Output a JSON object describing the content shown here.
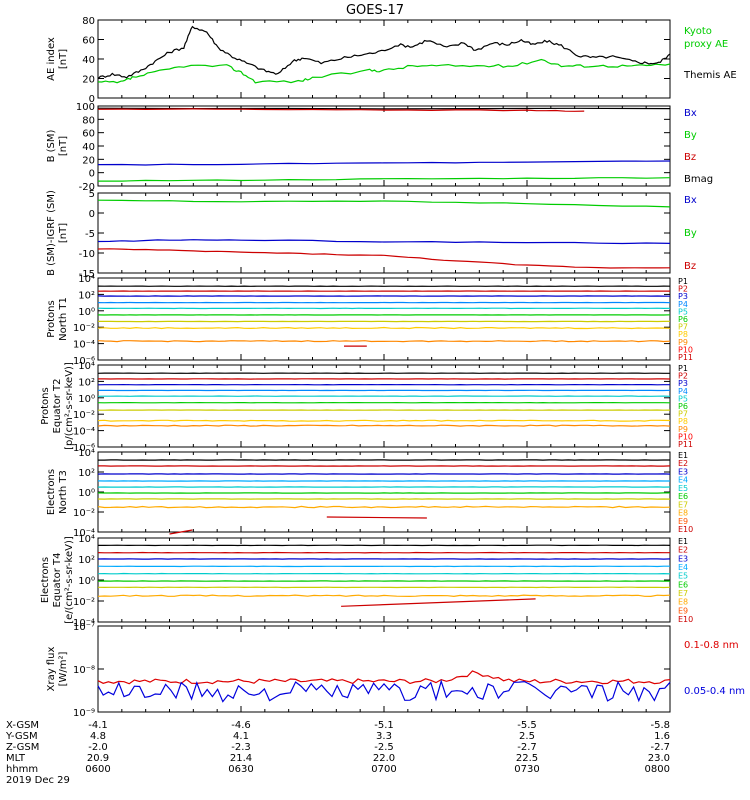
{
  "title": "GOES-17",
  "colors": {
    "kyoto": "#00cc00",
    "themis": "#000000",
    "bx": "#0000cc",
    "by": "#00cc00",
    "bz": "#cc0000",
    "bmag": "#000000",
    "xray_long": "#dd0000",
    "xray_short": "#0000dd"
  },
  "chart_data": [
    {
      "type": "line",
      "panel": "ae",
      "ylabel": [
        "AE index",
        "[nT]"
      ],
      "yticks": [
        "80",
        "60",
        "40",
        "20",
        "0"
      ],
      "ylim": [
        0,
        85
      ],
      "x_hours": [
        6.0,
        8.0
      ],
      "legend": [
        {
          "label": "Kyoto",
          "color": "kyoto"
        },
        {
          "label": "proxy AE",
          "color": "kyoto"
        },
        {
          "label": "Themis AE",
          "color": "themis"
        }
      ],
      "series": [
        {
          "name": "Kyoto proxy AE",
          "color": "kyoto",
          "x": [
            6.0,
            6.08,
            6.12,
            6.2,
            6.3,
            6.45,
            6.5,
            6.55,
            6.7,
            6.75,
            6.95,
            7.0,
            7.1,
            7.2,
            7.35,
            7.45,
            7.55,
            7.62,
            7.7,
            7.8,
            7.9,
            8.0
          ],
          "y": [
            17,
            17,
            22,
            28,
            35,
            35,
            28,
            18,
            18,
            22,
            30,
            30,
            35,
            35,
            35,
            35,
            42,
            35,
            35,
            35,
            35,
            37
          ]
        },
        {
          "name": "Themis AE",
          "color": "themis",
          "x": [
            6.0,
            6.05,
            6.1,
            6.15,
            6.2,
            6.25,
            6.3,
            6.33,
            6.38,
            6.42,
            6.47,
            6.52,
            6.58,
            6.63,
            6.68,
            6.72,
            6.78,
            6.85,
            6.92,
            6.98,
            7.05,
            7.1,
            7.15,
            7.22,
            7.28,
            7.32,
            7.38,
            7.43,
            7.48,
            7.52,
            7.57,
            7.62,
            7.68,
            7.73,
            7.8,
            7.87,
            7.92,
            7.96,
            8.0
          ],
          "y": [
            22,
            26,
            23,
            30,
            40,
            50,
            55,
            78,
            72,
            55,
            45,
            38,
            30,
            26,
            40,
            44,
            38,
            43,
            47,
            50,
            58,
            56,
            63,
            55,
            60,
            52,
            60,
            58,
            63,
            58,
            62,
            57,
            46,
            44,
            45,
            40,
            38,
            38,
            48
          ]
        }
      ]
    },
    {
      "type": "line",
      "panel": "bsm",
      "ylabel": [
        "B (SM)",
        "[nT]"
      ],
      "yticks": [
        "100",
        "80",
        "60",
        "40",
        "20",
        "0",
        "-20"
      ],
      "ylim": [
        -25,
        100
      ],
      "x_hours": [
        6.0,
        8.0
      ],
      "legend": [
        {
          "label": "Bx",
          "color": "bx"
        },
        {
          "label": "By",
          "color": "by"
        },
        {
          "label": "Bz",
          "color": "bz"
        },
        {
          "label": "Bmag",
          "color": "bmag"
        }
      ],
      "series": [
        {
          "name": "Bmag",
          "color": "bmag",
          "x": [
            6.0,
            8.0
          ],
          "y": [
            96,
            96
          ]
        },
        {
          "name": "Bz",
          "color": "bz",
          "x": [
            6.0,
            6.5,
            7.0,
            7.5,
            7.7
          ],
          "y": [
            95,
            95,
            94,
            93,
            92
          ]
        },
        {
          "name": "Bx",
          "color": "bx",
          "x": [
            6.0,
            6.5,
            7.0,
            7.5,
            8.0
          ],
          "y": [
            8,
            9,
            11,
            12,
            14
          ]
        },
        {
          "name": "By",
          "color": "by",
          "x": [
            6.0,
            6.5,
            7.0,
            7.5,
            8.0
          ],
          "y": [
            -17,
            -16,
            -14,
            -13,
            -12
          ]
        }
      ]
    },
    {
      "type": "line",
      "panel": "bdiff",
      "ylabel": [
        "B (SM)-IGRF (SM)",
        "[nT]"
      ],
      "yticks": [
        "5",
        "0",
        "-5",
        "-10",
        "-15"
      ],
      "ylim": [
        -16,
        7
      ],
      "x_hours": [
        6.0,
        8.0
      ],
      "legend": [
        {
          "label": "Bx",
          "color": "bx"
        },
        {
          "label": "By",
          "color": "by"
        },
        {
          "label": "Bz",
          "color": "bz"
        }
      ],
      "series": [
        {
          "name": "By",
          "color": "by",
          "x": [
            6.0,
            6.5,
            7.0,
            7.5,
            8.0
          ],
          "y": [
            5,
            4.5,
            4.6,
            4,
            3
          ]
        },
        {
          "name": "Bx",
          "color": "bx",
          "x": [
            6.0,
            6.25,
            6.5,
            7.0,
            7.5,
            8.0
          ],
          "y": [
            -7,
            -6.5,
            -6.5,
            -7,
            -7.2,
            -7.5
          ]
        },
        {
          "name": "Bz",
          "color": "bz",
          "x": [
            6.0,
            6.25,
            6.5,
            6.75,
            7.0,
            7.25,
            7.5,
            7.75,
            8.0
          ],
          "y": [
            -9,
            -9.5,
            -10,
            -10.5,
            -11,
            -12.5,
            -13.8,
            -14.5,
            -14.5
          ]
        }
      ]
    },
    {
      "type": "line",
      "panel": "p1",
      "ylabel": [
        "Protons",
        "North T1"
      ],
      "ylog": true,
      "yticks": [
        "10⁴",
        "10²",
        "10⁰",
        "10⁻²",
        "10⁻⁴",
        "10⁻⁶"
      ],
      "ylim": [
        -6,
        4
      ],
      "x_hours": [
        6.0,
        8.0
      ],
      "legend": [
        "P1",
        "P2",
        "P3",
        "P4",
        "P5",
        "P6",
        "P7",
        "P8",
        "P9",
        "P10",
        "P11"
      ],
      "series_log": [
        3.0,
        2.4,
        1.8,
        1.0,
        0.3,
        -0.5,
        -1.3,
        -2.1,
        -3.7,
        -5.3,
        -6.0
      ],
      "segment": {
        "x": [
          6.86,
          6.94
        ],
        "log": -4.3
      }
    },
    {
      "type": "line",
      "panel": "p2",
      "ylabel": [
        "Protons",
        "Equator T2",
        "[p/(cm²-s-sr-keV)]"
      ],
      "ylog": true,
      "yticks": [
        "10⁴",
        "10²",
        "10⁰",
        "10⁻²",
        "10⁻⁴",
        "10⁻⁶"
      ],
      "ylim": [
        -6,
        4
      ],
      "x_hours": [
        6.0,
        8.0
      ],
      "legend": [
        "P1",
        "P2",
        "P3",
        "P4",
        "P5",
        "P6",
        "P7",
        "P8",
        "P9",
        "P10",
        "P11"
      ],
      "series_log": [
        3.0,
        2.3,
        1.6,
        0.9,
        0.2,
        -0.6,
        -1.5,
        -2.8,
        -3.4,
        -5.3,
        -6.0
      ]
    },
    {
      "type": "line",
      "panel": "e3",
      "ylabel": [
        "Electrons",
        "North T3"
      ],
      "ylog": true,
      "yticks": [
        "10⁴",
        "10²",
        "10⁰",
        "10⁻²",
        "10⁻⁴"
      ],
      "ylim": [
        -4,
        4
      ],
      "x_hours": [
        6.0,
        8.0
      ],
      "legend": [
        "E1",
        "E2",
        "E3",
        "E4",
        "E5",
        "E6",
        "E7",
        "E8",
        "E9",
        "E10"
      ],
      "series_log": [
        3.2,
        2.6,
        1.8,
        1.1,
        0.5,
        -0.1,
        -0.7,
        -1.5,
        -2.0,
        -2.5
      ],
      "segments": [
        {
          "x": [
            6.25,
            6.33
          ],
          "log": [
            -4.2,
            -3.8
          ]
        },
        {
          "x": [
            6.8,
            7.15
          ],
          "log": [
            -2.5,
            -2.6
          ]
        }
      ]
    },
    {
      "type": "line",
      "panel": "e4",
      "ylabel": [
        "Electrons",
        "Equator T4",
        "[e/(cm²-s-sr-keV)]"
      ],
      "ylog": true,
      "yticks": [
        "10⁴",
        "10²",
        "10⁰",
        "10⁻²",
        "10⁻⁴"
      ],
      "ylim": [
        -4,
        4
      ],
      "x_hours": [
        6.0,
        8.0
      ],
      "legend": [
        "E1",
        "E2",
        "E3",
        "E4",
        "E5",
        "E6",
        "E7",
        "E8",
        "E9",
        "E10"
      ],
      "series_log": [
        3.3,
        2.6,
        2.0,
        1.3,
        0.6,
        -0.1,
        -0.7,
        -1.5,
        -2.3,
        -3.0
      ],
      "segment": {
        "x": [
          6.85,
          7.53
        ],
        "log": [
          -2.5,
          -1.8
        ]
      }
    },
    {
      "type": "line",
      "panel": "xray",
      "ylabel": [
        "Xray flux",
        "[W/m²]"
      ],
      "ylog": true,
      "yticks": [
        "10⁻⁷",
        "10⁻⁸",
        "10⁻⁹"
      ],
      "ylim": [
        -9.1,
        -7
      ],
      "x_hours": [
        6.0,
        8.0
      ],
      "legend": [
        {
          "label": "0.1-0.8 nm",
          "color": "xray_long"
        },
        {
          "label": "0.05-0.4 nm",
          "color": "xray_short"
        }
      ],
      "series": [
        {
          "name": "0.1-0.8 nm",
          "color": "xray_long",
          "center": -8.35,
          "bumps": [
            {
              "x": 7.32,
              "h": 0.2
            }
          ],
          "jitter": 0.06
        },
        {
          "name": "0.05-0.4 nm",
          "color": "xray_short",
          "center": -8.6,
          "bumps": [],
          "jitter": 0.25
        }
      ]
    }
  ],
  "xaxis": {
    "labels": [
      "X-GSM",
      "Y-GSM",
      "Z-GSM",
      "MLT",
      "hhmm",
      "2019 Dec 29"
    ],
    "columns": [
      [
        "-4.1",
        "4.8",
        "-2.0",
        "20.9",
        "0600"
      ],
      [
        "-4.6",
        "4.1",
        "-2.3",
        "21.4",
        "0630"
      ],
      [
        "-5.1",
        "3.3",
        "-2.5",
        "22.0",
        "0700"
      ],
      [
        "-5.5",
        "2.5",
        "-2.7",
        "22.5",
        "0730"
      ],
      [
        "-5.8",
        "1.6",
        "-2.7",
        "23.0",
        "0800"
      ]
    ]
  }
}
